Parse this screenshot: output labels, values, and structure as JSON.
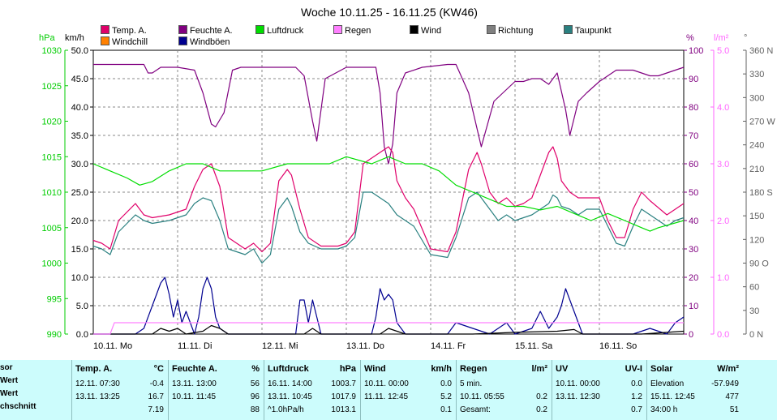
{
  "title": "Woche 10.11.25 - 16.11.25 (KW46)",
  "legend": [
    {
      "label": "Temp. A.",
      "color": "#e0006a"
    },
    {
      "label": "Feuchte A.",
      "color": "#800080"
    },
    {
      "label": "Luftdruck",
      "color": "#00dd00"
    },
    {
      "label": "Regen",
      "color": "#ff80ff"
    },
    {
      "label": "Wind",
      "color": "#000000"
    },
    {
      "label": "Richtung",
      "color": "#808080"
    },
    {
      "label": "Taupunkt",
      "color": "#2a8080"
    },
    {
      "label": "Windchill",
      "color": "#ff8000"
    },
    {
      "label": "Windböen",
      "color": "#000090"
    }
  ],
  "axis_units": {
    "hpa": "hPa",
    "kmh": "km/h",
    "pct": "%",
    "rain": "l/m²",
    "dir": "°"
  },
  "colors": {
    "hpa": "#00cc00",
    "kmh": "#000000",
    "pct": "#800080",
    "rain": "#ff66ff",
    "dir": "#606060",
    "stats_bg": "#ccfcfc"
  },
  "chart_data": {
    "type": "line",
    "title": "Woche 10.11.25 - 16.11.25 (KW46)",
    "x_labels": [
      "10.11. Mo",
      "11.11. Di",
      "12.11. Mi",
      "13.11. Do",
      "14.11. Fr",
      "15.11. Sa",
      "16.11. So"
    ],
    "x_range_days": [
      0,
      7
    ],
    "axes": {
      "hpa": {
        "min": 990,
        "max": 1030,
        "ticks": [
          990,
          995,
          1000,
          1005,
          1010,
          1015,
          1020,
          1025,
          1030
        ]
      },
      "kmh": {
        "min": 0,
        "max": 50,
        "ticks": [
          "0.0",
          "5.0",
          "10.0",
          "15.0",
          "20.0",
          "25.0",
          "30.0",
          "35.0",
          "40.0",
          "45.0",
          "50.0"
        ]
      },
      "pct": {
        "min": 0,
        "max": 100,
        "ticks": [
          0,
          10,
          20,
          30,
          40,
          50,
          60,
          70,
          80,
          90,
          100
        ]
      },
      "rain": {
        "min": 0,
        "max": 5,
        "ticks": [
          "0.0",
          "1.0",
          "2.0",
          "3.0",
          "4.0",
          "5.0"
        ]
      },
      "dir": {
        "min": 0,
        "max": 360,
        "ticks": [
          "0 N",
          "30",
          "60",
          "90 O",
          "120",
          "150",
          "180 S",
          "210",
          "240",
          "270 W",
          "300",
          "330",
          "360 N"
        ]
      }
    },
    "grid": true,
    "series": [
      {
        "name": "Feuchte A.",
        "color": "#800080",
        "axis": "pct",
        "x": [
          0,
          0.3,
          0.6,
          0.65,
          0.7,
          0.8,
          1.0,
          1.2,
          1.3,
          1.4,
          1.45,
          1.55,
          1.65,
          1.75,
          2.0,
          2.2,
          2.4,
          2.5,
          2.6,
          2.65,
          2.75,
          3.0,
          3.25,
          3.35,
          3.4,
          3.45,
          3.5,
          3.55,
          3.6,
          3.7,
          3.9,
          4.2,
          4.3,
          4.45,
          4.6,
          4.75,
          5.0,
          5.1,
          5.2,
          5.3,
          5.4,
          5.5,
          5.6,
          5.65,
          5.75,
          5.85,
          6.0,
          6.2,
          6.4,
          6.6,
          6.7,
          7.0
        ],
        "y": [
          95,
          95,
          95,
          92,
          92,
          94,
          94,
          93,
          85,
          74,
          73,
          78,
          93,
          94,
          94,
          94,
          94,
          91,
          75,
          68,
          90,
          94,
          94,
          94,
          85,
          66,
          60,
          67,
          85,
          92,
          94,
          95,
          95,
          85,
          66,
          82,
          89,
          89,
          90,
          90,
          88,
          92,
          79,
          70,
          82,
          85,
          89,
          93,
          93,
          91,
          91,
          94
        ]
      },
      {
        "name": "Temp. A.",
        "color": "#e0006a",
        "axis": "kmh",
        "x": [
          0,
          0.1,
          0.2,
          0.3,
          0.5,
          0.6,
          0.7,
          0.9,
          1.0,
          1.1,
          1.2,
          1.3,
          1.4,
          1.5,
          1.6,
          1.8,
          1.9,
          2.0,
          2.1,
          2.2,
          2.3,
          2.35,
          2.45,
          2.55,
          2.7,
          2.9,
          3.0,
          3.1,
          3.2,
          3.3,
          3.4,
          3.5,
          3.55,
          3.6,
          3.7,
          3.8,
          4.0,
          4.2,
          4.3,
          4.45,
          4.55,
          4.6,
          4.7,
          4.8,
          4.9,
          5.0,
          5.1,
          5.2,
          5.3,
          5.4,
          5.45,
          5.5,
          5.55,
          5.65,
          5.75,
          5.85,
          6.0,
          6.1,
          6.2,
          6.3,
          6.4,
          6.5,
          6.6,
          6.8,
          6.9,
          7.0
        ],
        "y": [
          16.5,
          16,
          15,
          20,
          23,
          21,
          20.5,
          21,
          21.5,
          22,
          26,
          29,
          30,
          26,
          17,
          15,
          16,
          14.5,
          16,
          27,
          29,
          28,
          22,
          17,
          15.5,
          15.5,
          16,
          18,
          30,
          31,
          32,
          33,
          32,
          27,
          24,
          22,
          15,
          14.5,
          18,
          29,
          32,
          30,
          25,
          23,
          24,
          22.5,
          23,
          24,
          28,
          32,
          33,
          31,
          27,
          25,
          24,
          24,
          24,
          20,
          17,
          17,
          22,
          25,
          23.5,
          21,
          22,
          23
        ]
      },
      {
        "name": "Taupunkt",
        "color": "#2a8080",
        "axis": "kmh",
        "x": [
          0,
          0.1,
          0.2,
          0.3,
          0.5,
          0.6,
          0.7,
          0.9,
          1.0,
          1.1,
          1.2,
          1.3,
          1.4,
          1.5,
          1.6,
          1.8,
          1.9,
          2.0,
          2.1,
          2.2,
          2.3,
          2.35,
          2.45,
          2.55,
          2.7,
          2.9,
          3.0,
          3.1,
          3.2,
          3.3,
          3.4,
          3.5,
          3.55,
          3.6,
          3.7,
          3.8,
          4.0,
          4.2,
          4.3,
          4.45,
          4.55,
          4.6,
          4.7,
          4.8,
          4.9,
          5.0,
          5.1,
          5.2,
          5.3,
          5.4,
          5.45,
          5.5,
          5.55,
          5.65,
          5.75,
          5.85,
          6.0,
          6.1,
          6.2,
          6.3,
          6.4,
          6.5,
          6.6,
          6.8,
          6.9,
          7.0
        ],
        "y": [
          15.5,
          15,
          14,
          18,
          21,
          20,
          19.5,
          20,
          20.5,
          21,
          23,
          24,
          23.5,
          20,
          15,
          14,
          15,
          12.5,
          14,
          22,
          24,
          22.5,
          18,
          16,
          15,
          15,
          15.5,
          17,
          25,
          25,
          24,
          23,
          22,
          21,
          20,
          19,
          14,
          13.5,
          17,
          24,
          25,
          24,
          22,
          20,
          21,
          20,
          20.5,
          21,
          22,
          23,
          24.5,
          24,
          22.5,
          22,
          21,
          22,
          22,
          19,
          16,
          15.5,
          19,
          22,
          21,
          19,
          20,
          20.5
        ]
      },
      {
        "name": "Luftdruck",
        "color": "#00dd00",
        "axis": "hpa",
        "x": [
          0,
          0.2,
          0.4,
          0.55,
          0.7,
          0.9,
          1.1,
          1.3,
          1.5,
          2.0,
          2.3,
          2.6,
          2.8,
          3.0,
          3.3,
          3.5,
          3.7,
          3.9,
          4.1,
          4.3,
          4.5,
          4.7,
          4.9,
          5.1,
          5.3,
          5.5,
          5.7,
          5.9,
          6.1,
          6.3,
          6.5,
          6.6,
          6.7,
          6.85,
          7.0
        ],
        "y": [
          1014,
          1013,
          1012,
          1011,
          1011.5,
          1013,
          1014,
          1014,
          1013,
          1013,
          1014,
          1014,
          1014,
          1015,
          1014,
          1015,
          1014,
          1014,
          1013,
          1011,
          1010,
          1009,
          1008,
          1008,
          1007.5,
          1008,
          1007,
          1006,
          1007,
          1006,
          1005,
          1004.5,
          1005,
          1005.5,
          1006
        ]
      },
      {
        "name": "Windböen",
        "color": "#000090",
        "axis": "kmh",
        "x": [
          0,
          0.5,
          0.6,
          0.7,
          0.8,
          0.85,
          0.9,
          0.95,
          1.0,
          1.05,
          1.1,
          1.2,
          1.25,
          1.3,
          1.35,
          1.4,
          1.45,
          1.5,
          1.6,
          2.4,
          2.45,
          2.5,
          2.55,
          2.6,
          2.65,
          2.7,
          3.3,
          3.35,
          3.4,
          3.45,
          3.5,
          3.55,
          3.6,
          3.65,
          3.7,
          4.2,
          4.3,
          4.5,
          4.7,
          4.9,
          5.0,
          5.2,
          5.3,
          5.4,
          5.5,
          5.55,
          5.6,
          5.65,
          5.7,
          5.75,
          5.8,
          6.4,
          6.6,
          6.8,
          6.9,
          7.0
        ],
        "y": [
          0,
          0,
          1,
          5,
          9,
          10,
          7,
          3,
          6,
          2,
          4,
          0,
          3,
          8,
          10,
          8,
          3,
          1,
          0,
          0,
          6,
          6,
          2,
          6,
          3,
          0,
          0,
          3,
          8,
          6,
          7,
          6,
          2,
          1,
          0,
          0,
          2,
          1,
          0,
          2,
          0,
          1,
          4,
          1,
          3,
          5,
          8,
          6,
          4,
          2,
          0,
          0,
          1,
          0,
          2,
          3
        ]
      },
      {
        "name": "Wind",
        "color": "#000000",
        "axis": "kmh",
        "x": [
          0,
          0.7,
          0.8,
          0.9,
          1.0,
          1.1,
          1.3,
          1.4,
          1.5,
          1.6,
          2.5,
          2.6,
          2.7,
          3.4,
          3.5,
          3.6,
          3.7,
          4.5,
          5.0,
          5.5,
          5.7,
          5.8,
          6.5,
          7.0
        ],
        "y": [
          0,
          0,
          1,
          0.5,
          1,
          0,
          0.5,
          1.5,
          1,
          0,
          0,
          1,
          0,
          0,
          1,
          0.5,
          0,
          0,
          0.3,
          0.5,
          0.8,
          0,
          0,
          0.5
        ]
      },
      {
        "name": "Regen",
        "color": "#ff80ff",
        "axis": "rain",
        "x": [
          0,
          0.2,
          0.25,
          7.0
        ],
        "y": [
          0,
          0,
          0.2,
          0.2
        ]
      }
    ]
  },
  "stats": {
    "row_labels": [
      "sor",
      "Wert",
      "Wert",
      "chschnitt"
    ],
    "panels": [
      {
        "title": "Temp. A.",
        "unit": "°C",
        "rows": [
          [
            "12.11.  07:30",
            "-0.4"
          ],
          [
            "13.11.  13:25",
            "16.7"
          ],
          [
            "",
            "7.19"
          ]
        ]
      },
      {
        "title": "Feuchte A.",
        "unit": "%",
        "rows": [
          [
            "13.11.  13:00",
            "56"
          ],
          [
            "10.11.  11:45",
            "96"
          ],
          [
            "",
            "88"
          ]
        ]
      },
      {
        "title": "Luftdruck",
        "unit": "hPa",
        "rows": [
          [
            "16.11.  14:00",
            "1003.7"
          ],
          [
            "13.11.  10:45",
            "1017.9"
          ],
          [
            "^1.0hPa/h",
            "1013.1"
          ]
        ]
      },
      {
        "title": "Wind",
        "unit": "km/h",
        "rows": [
          [
            "10.11.  00:00",
            "0.0"
          ],
          [
            "11.11.  12:45",
            "5.2"
          ],
          [
            "",
            "0.1"
          ]
        ]
      },
      {
        "title": "Regen",
        "unit": "l/m²",
        "rows": [
          [
            "5 min.",
            ""
          ],
          [
            "10.11.  05:55",
            "0.2"
          ],
          [
            "Gesamt:",
            "0.2"
          ]
        ]
      },
      {
        "title": "UV",
        "unit": "UV-I",
        "rows": [
          [
            "10.11.  00:00",
            "0.0"
          ],
          [
            "13.11.  12:30",
            "1.2"
          ],
          [
            "",
            "0.7"
          ]
        ]
      },
      {
        "title": "Solar",
        "unit": "W/m²",
        "rows": [
          [
            "Elevation",
            "-57.949"
          ],
          [
            "15.11.  12:45",
            "477"
          ],
          [
            "34:00 h",
            "51"
          ]
        ]
      }
    ]
  }
}
